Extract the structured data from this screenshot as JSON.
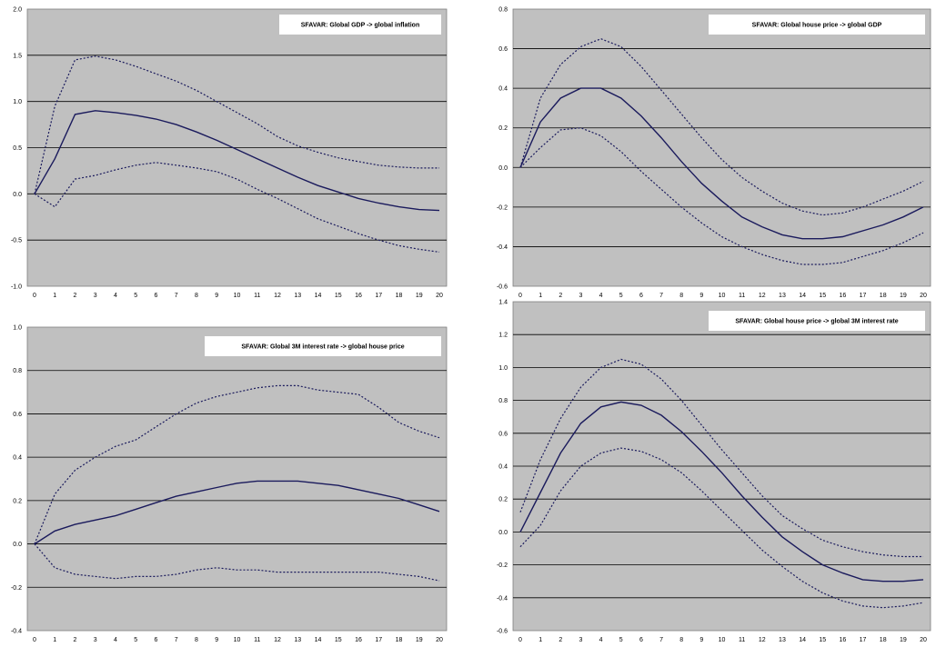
{
  "chart_data": [
    {
      "type": "line",
      "title": "SFAVAR: Global GDP -> global inflation",
      "x": [
        0,
        1,
        2,
        3,
        4,
        5,
        6,
        7,
        8,
        9,
        10,
        11,
        12,
        13,
        14,
        15,
        16,
        17,
        18,
        19,
        20
      ],
      "ylim": [
        -1.0,
        2.0
      ],
      "yticks": [
        -1.0,
        -0.5,
        0.0,
        0.5,
        1.0,
        1.5,
        2.0
      ],
      "ytick_labels": [
        "-1.0",
        "-0.5",
        "0.0",
        "0.5",
        "1.0",
        "1.5",
        "2.0"
      ],
      "grid": true,
      "series": [
        {
          "style": "solid",
          "values": [
            0.0,
            0.38,
            0.86,
            0.9,
            0.88,
            0.85,
            0.81,
            0.75,
            0.67,
            0.58,
            0.48,
            0.38,
            0.28,
            0.18,
            0.09,
            0.02,
            -0.05,
            -0.1,
            -0.14,
            -0.17,
            -0.18
          ]
        },
        {
          "style": "dotted",
          "values": [
            0.0,
            0.95,
            1.45,
            1.49,
            1.45,
            1.38,
            1.3,
            1.22,
            1.12,
            1.0,
            0.88,
            0.76,
            0.62,
            0.52,
            0.45,
            0.39,
            0.35,
            0.31,
            0.29,
            0.28,
            0.28
          ]
        },
        {
          "style": "dotted",
          "values": [
            0.0,
            -0.14,
            0.16,
            0.2,
            0.26,
            0.31,
            0.34,
            0.31,
            0.28,
            0.24,
            0.16,
            0.05,
            -0.05,
            -0.16,
            -0.27,
            -0.35,
            -0.43,
            -0.5,
            -0.56,
            -0.6,
            -0.63
          ]
        }
      ]
    },
    {
      "type": "line",
      "title": "SFAVAR: Global house price -> global GDP",
      "x": [
        0,
        1,
        2,
        3,
        4,
        5,
        6,
        7,
        8,
        9,
        10,
        11,
        12,
        13,
        14,
        15,
        16,
        17,
        18,
        19,
        20
      ],
      "ylim": [
        -0.6,
        0.8
      ],
      "yticks": [
        -0.6,
        -0.4,
        -0.2,
        0.0,
        0.2,
        0.4,
        0.6,
        0.8
      ],
      "ytick_labels": [
        "-0.6",
        "-0.4",
        "-0.2",
        "0.0",
        "0.2",
        "0.4",
        "0.6",
        "0.8"
      ],
      "grid": true,
      "series": [
        {
          "style": "solid",
          "values": [
            0.0,
            0.23,
            0.35,
            0.4,
            0.4,
            0.35,
            0.26,
            0.15,
            0.03,
            -0.08,
            -0.17,
            -0.25,
            -0.3,
            -0.34,
            -0.36,
            -0.36,
            -0.35,
            -0.32,
            -0.29,
            -0.25,
            -0.2
          ]
        },
        {
          "style": "dotted",
          "values": [
            0.0,
            0.35,
            0.52,
            0.61,
            0.65,
            0.61,
            0.51,
            0.39,
            0.27,
            0.15,
            0.04,
            -0.05,
            -0.12,
            -0.18,
            -0.22,
            -0.24,
            -0.23,
            -0.2,
            -0.16,
            -0.12,
            -0.07
          ]
        },
        {
          "style": "dotted",
          "values": [
            0.0,
            0.1,
            0.19,
            0.2,
            0.16,
            0.08,
            -0.02,
            -0.11,
            -0.2,
            -0.28,
            -0.35,
            -0.4,
            -0.44,
            -0.47,
            -0.49,
            -0.49,
            -0.48,
            -0.45,
            -0.42,
            -0.38,
            -0.33
          ]
        }
      ]
    },
    {
      "type": "line",
      "title": "SFAVAR: Global 3M interest rate -> global house price",
      "x": [
        0,
        1,
        2,
        3,
        4,
        5,
        6,
        7,
        8,
        9,
        10,
        11,
        12,
        13,
        14,
        15,
        16,
        17,
        18,
        19,
        20
      ],
      "ylim": [
        -0.4,
        1.0
      ],
      "yticks": [
        -0.4,
        -0.2,
        0.0,
        0.2,
        0.4,
        0.6,
        0.8,
        1.0
      ],
      "ytick_labels": [
        "-0.4",
        "-0.2",
        "0.0",
        "0.2",
        "0.4",
        "0.6",
        "0.8",
        "1.0"
      ],
      "grid": true,
      "series": [
        {
          "style": "solid",
          "values": [
            0.0,
            0.06,
            0.09,
            0.11,
            0.13,
            0.16,
            0.19,
            0.22,
            0.24,
            0.26,
            0.28,
            0.29,
            0.29,
            0.29,
            0.28,
            0.27,
            0.25,
            0.23,
            0.21,
            0.18,
            0.15
          ]
        },
        {
          "style": "dotted",
          "values": [
            0.0,
            0.23,
            0.34,
            0.4,
            0.45,
            0.48,
            0.54,
            0.6,
            0.65,
            0.68,
            0.7,
            0.72,
            0.73,
            0.73,
            0.71,
            0.7,
            0.69,
            0.63,
            0.56,
            0.52,
            0.49
          ]
        },
        {
          "style": "dotted",
          "values": [
            0.0,
            -0.11,
            -0.14,
            -0.15,
            -0.16,
            -0.15,
            -0.15,
            -0.14,
            -0.12,
            -0.11,
            -0.12,
            -0.12,
            -0.13,
            -0.13,
            -0.13,
            -0.13,
            -0.13,
            -0.13,
            -0.14,
            -0.15,
            -0.17
          ]
        }
      ]
    },
    {
      "type": "line",
      "title": "SFAVAR: Global house price -> global 3M interest rate",
      "x": [
        0,
        1,
        2,
        3,
        4,
        5,
        6,
        7,
        8,
        9,
        10,
        11,
        12,
        13,
        14,
        15,
        16,
        17,
        18,
        19,
        20
      ],
      "ylim": [
        -0.6,
        1.4
      ],
      "yticks": [
        -0.6,
        -0.4,
        -0.2,
        0.0,
        0.2,
        0.4,
        0.6,
        0.8,
        1.0,
        1.2,
        1.4
      ],
      "ytick_labels": [
        "-0.6",
        "-0.4",
        "-0.2",
        "0.0",
        "0.2",
        "0.4",
        "0.6",
        "0.8",
        "1.0",
        "1.2",
        "1.4"
      ],
      "grid": true,
      "series": [
        {
          "style": "solid",
          "values": [
            0.0,
            0.24,
            0.48,
            0.66,
            0.76,
            0.79,
            0.77,
            0.71,
            0.61,
            0.49,
            0.36,
            0.22,
            0.09,
            -0.03,
            -0.12,
            -0.2,
            -0.25,
            -0.29,
            -0.3,
            -0.3,
            -0.29
          ]
        },
        {
          "style": "dotted",
          "values": [
            0.12,
            0.44,
            0.69,
            0.88,
            1.0,
            1.05,
            1.02,
            0.93,
            0.8,
            0.65,
            0.5,
            0.36,
            0.22,
            0.1,
            0.02,
            -0.05,
            -0.09,
            -0.12,
            -0.14,
            -0.15,
            -0.15
          ]
        },
        {
          "style": "dotted",
          "values": [
            -0.09,
            0.04,
            0.25,
            0.4,
            0.48,
            0.51,
            0.49,
            0.44,
            0.36,
            0.25,
            0.13,
            0.01,
            -0.11,
            -0.21,
            -0.3,
            -0.37,
            -0.42,
            -0.45,
            -0.46,
            -0.45,
            -0.43
          ]
        }
      ]
    }
  ],
  "colors": {
    "plot_bg": "#c0c0c0",
    "gridline": "#000000",
    "series": "#1a1a5c",
    "title_box": "#ffffff"
  }
}
